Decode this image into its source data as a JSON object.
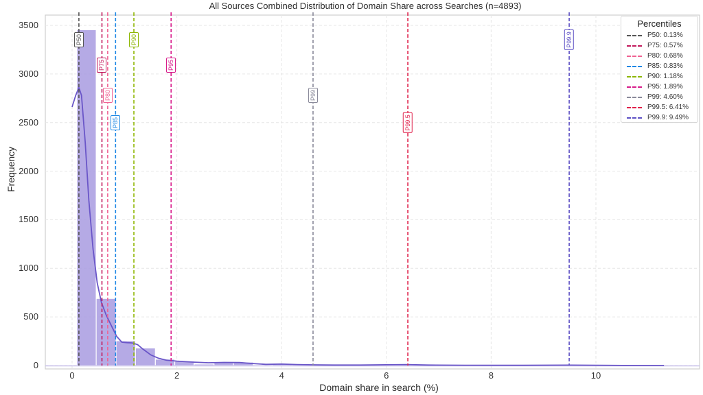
{
  "chart_data": {
    "type": "bar",
    "title": "All Sources Combined Distribution of Domain Share across Searches (n=4893)",
    "xlabel": "Domain share in search (%)",
    "ylabel": "Frequency",
    "xlim": [
      -0.45,
      11.65
    ],
    "ylim": [
      0,
      3640
    ],
    "xticks": [
      "0",
      "2",
      "4",
      "6",
      "8",
      "10"
    ],
    "yticks": [
      "0",
      "500",
      "1000",
      "1500",
      "2000",
      "2500",
      "3000",
      "3500"
    ],
    "grid": true,
    "bin_start": 0.09,
    "bin_width": 0.374,
    "bins": [
      {
        "x0": 0.09,
        "x1": 0.46,
        "count": 3455
      },
      {
        "x0": 0.46,
        "x1": 0.84,
        "count": 690
      },
      {
        "x0": 0.84,
        "x1": 1.21,
        "count": 255
      },
      {
        "x0": 1.21,
        "x1": 1.59,
        "count": 180
      },
      {
        "x0": 1.59,
        "x1": 1.96,
        "count": 65
      },
      {
        "x0": 1.96,
        "x1": 2.33,
        "count": 45
      },
      {
        "x0": 2.33,
        "x1": 2.71,
        "count": 15
      },
      {
        "x0": 2.71,
        "x1": 3.08,
        "count": 30
      },
      {
        "x0": 3.08,
        "x1": 3.46,
        "count": 35
      },
      {
        "x0": 3.46,
        "x1": 3.83,
        "count": 8
      },
      {
        "x0": 3.83,
        "x1": 4.2,
        "count": 15
      },
      {
        "x0": 4.2,
        "x1": 4.58,
        "count": 12
      },
      {
        "x0": 4.58,
        "x1": 4.95,
        "count": 8
      },
      {
        "x0": 4.95,
        "x1": 5.32,
        "count": 6
      },
      {
        "x0": 5.32,
        "x1": 5.7,
        "count": 5
      },
      {
        "x0": 5.7,
        "x1": 6.07,
        "count": 6
      },
      {
        "x0": 6.07,
        "x1": 6.45,
        "count": 10
      },
      {
        "x0": 6.45,
        "x1": 6.82,
        "count": 5
      },
      {
        "x0": 6.82,
        "x1": 7.19,
        "count": 3
      },
      {
        "x0": 7.19,
        "x1": 7.57,
        "count": 3
      },
      {
        "x0": 7.57,
        "x1": 7.94,
        "count": 4
      },
      {
        "x0": 7.94,
        "x1": 8.31,
        "count": 2
      },
      {
        "x0": 8.31,
        "x1": 8.69,
        "count": 2
      },
      {
        "x0": 8.69,
        "x1": 9.06,
        "count": 2
      },
      {
        "x0": 9.06,
        "x1": 9.43,
        "count": 2
      },
      {
        "x0": 9.43,
        "x1": 9.81,
        "count": 3
      },
      {
        "x0": 9.81,
        "x1": 10.18,
        "count": 2
      },
      {
        "x0": 10.18,
        "x1": 10.55,
        "count": 1
      },
      {
        "x0": 10.55,
        "x1": 10.93,
        "count": 1
      },
      {
        "x0": 10.93,
        "x1": 11.3,
        "count": 1
      }
    ],
    "kde": {
      "color": "#6a56c8",
      "points": [
        [
          0.0,
          2660
        ],
        [
          0.07,
          2780
        ],
        [
          0.13,
          2860
        ],
        [
          0.18,
          2780
        ],
        [
          0.25,
          2300
        ],
        [
          0.32,
          1700
        ],
        [
          0.4,
          1200
        ],
        [
          0.48,
          850
        ],
        [
          0.56,
          650
        ],
        [
          0.65,
          520
        ],
        [
          0.75,
          410
        ],
        [
          0.85,
          300
        ],
        [
          0.95,
          240
        ],
        [
          1.05,
          235
        ],
        [
          1.15,
          232
        ],
        [
          1.25,
          215
        ],
        [
          1.35,
          170
        ],
        [
          1.5,
          110
        ],
        [
          1.65,
          75
        ],
        [
          1.8,
          55
        ],
        [
          2.0,
          45
        ],
        [
          2.3,
          35
        ],
        [
          2.6,
          28
        ],
        [
          2.9,
          32
        ],
        [
          3.2,
          30
        ],
        [
          3.4,
          22
        ],
        [
          3.7,
          12
        ],
        [
          4.0,
          15
        ],
        [
          4.3,
          10
        ],
        [
          4.6,
          7
        ],
        [
          5.0,
          5
        ],
        [
          5.5,
          5
        ],
        [
          6.0,
          8
        ],
        [
          6.4,
          10
        ],
        [
          6.8,
          5
        ],
        [
          7.5,
          3
        ],
        [
          8.5,
          2
        ],
        [
          9.5,
          4
        ],
        [
          10.0,
          3
        ],
        [
          10.5,
          1
        ],
        [
          11.3,
          0
        ]
      ]
    },
    "bar_color": "#a89be0",
    "percentiles": [
      {
        "label": "P50",
        "value": 0.13,
        "legend": "P50: 0.13%",
        "color": "#555555",
        "label_y": 3350
      },
      {
        "label": "P75",
        "value": 0.57,
        "legend": "P75: 0.57%",
        "color": "#c2185b",
        "label_y": 3090
      },
      {
        "label": "P80",
        "value": 0.68,
        "legend": "P80: 0.68%",
        "color": "#f06292",
        "label_y": 2780
      },
      {
        "label": "P85",
        "value": 0.83,
        "legend": "P85: 0.83%",
        "color": "#1e88e5",
        "label_y": 2500
      },
      {
        "label": "P90",
        "value": 1.18,
        "legend": "P90: 1.18%",
        "color": "#8db600",
        "label_y": 3350
      },
      {
        "label": "P95",
        "value": 1.89,
        "legend": "P95: 1.89%",
        "color": "#d81b8a",
        "label_y": 3090
      },
      {
        "label": "P99",
        "value": 4.6,
        "legend": "P99: 4.60%",
        "color": "#8a8a9a",
        "label_y": 2780
      },
      {
        "label": "P99.5",
        "value": 6.41,
        "legend": "P99.5: 6.41%",
        "color": "#e0204a",
        "label_y": 2500
      },
      {
        "label": "P99.9",
        "value": 9.49,
        "legend": "P99.9: 9.49%",
        "color": "#5c4fc4",
        "label_y": 3350
      }
    ],
    "legend_title": "Percentiles",
    "legend_position": "upper right"
  }
}
